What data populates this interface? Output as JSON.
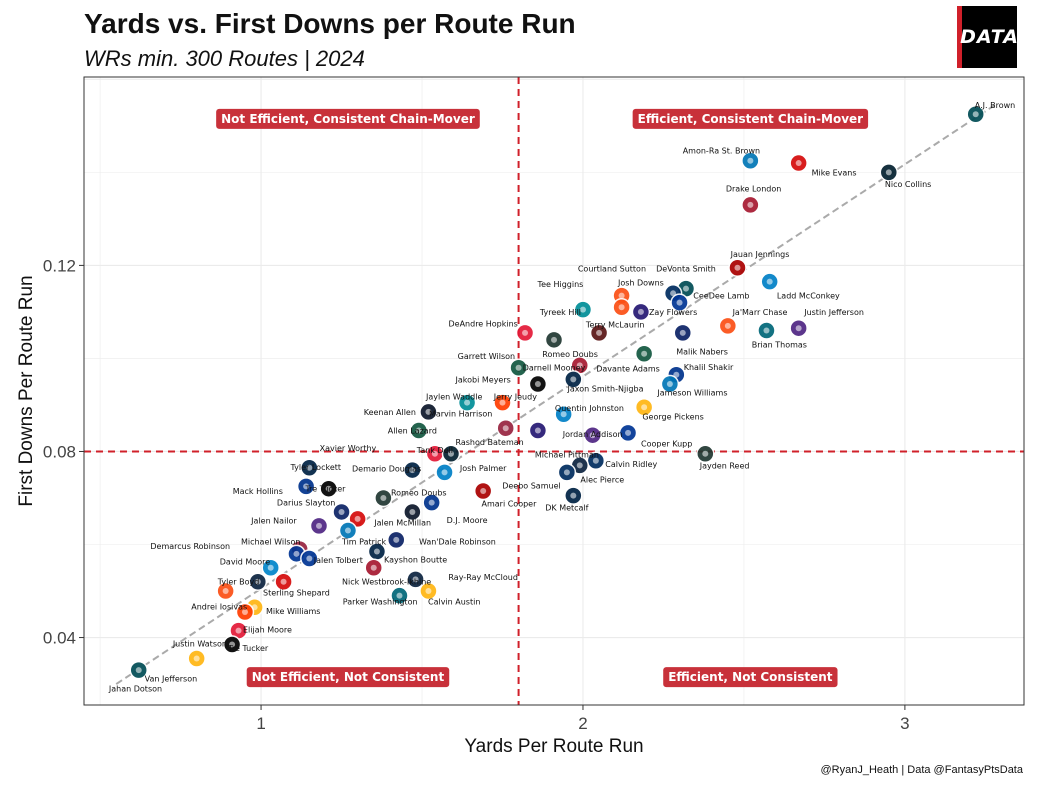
{
  "header": {
    "title": "Yards vs. First Downs per Route Run",
    "subtitle": "WRs min. 300 Routes | 2024",
    "logo_text": "DATA"
  },
  "footer": {
    "caption": "@RyanJ_Heath | Data @FantasyPtsData"
  },
  "colors": {
    "accent_red": "#d0202a",
    "quadrant_box": "#c8313a",
    "trend_line": "#aaaaaa",
    "grid": "#ebebeb"
  },
  "chart_data": {
    "type": "scatter",
    "xlabel": "Yards Per Route Run",
    "ylabel": "First Downs Per Route Run",
    "xlim": [
      0.45,
      3.37
    ],
    "ylim": [
      0.0255,
      0.1605
    ],
    "x_ticks": [
      1,
      2,
      3
    ],
    "y_ticks": [
      0.04,
      0.08,
      0.12
    ],
    "y_tick_labels": [
      "0.04",
      "0.08",
      "0.12"
    ],
    "grid": true,
    "reference_lines": {
      "x": 1.8,
      "y": 0.08
    },
    "trend_line": {
      "x": [
        0.55,
        3.28
      ],
      "y": [
        0.03,
        0.1545
      ]
    },
    "quadrant_labels": [
      {
        "text": "Not Efficient, Consistent Chain-Mover",
        "x": 1.27,
        "y": 0.1515
      },
      {
        "text": "Efficient, Consistent Chain-Mover",
        "x": 2.52,
        "y": 0.1515
      },
      {
        "text": "Not Efficient, Not Consistent",
        "x": 1.27,
        "y": 0.0315
      },
      {
        "text": "Efficient, Not Consistent",
        "x": 2.52,
        "y": 0.0315
      }
    ],
    "points": [
      {
        "name": "A.J. Brown",
        "team": "PHI",
        "color": "#004c54",
        "x": 3.22,
        "y": 0.1525,
        "lx": 3.28,
        "ly": 0.1545
      },
      {
        "name": "Amon-Ra St. Brown",
        "team": "DET",
        "color": "#0076b6",
        "x": 2.52,
        "y": 0.1425,
        "lx": 2.43,
        "ly": 0.1447
      },
      {
        "name": "Mike Evans",
        "team": "TB",
        "color": "#d50a0a",
        "x": 2.67,
        "y": 0.142,
        "lx": 2.78,
        "ly": 0.14
      },
      {
        "name": "Nico Collins",
        "team": "HOU",
        "color": "#03202f",
        "x": 2.95,
        "y": 0.14,
        "lx": 3.01,
        "ly": 0.1375
      },
      {
        "name": "Drake London",
        "team": "ATL",
        "color": "#a71930",
        "x": 2.52,
        "y": 0.133,
        "lx": 2.53,
        "ly": 0.1365
      },
      {
        "name": "Jauan Jennings",
        "team": "SF",
        "color": "#aa0000",
        "x": 2.48,
        "y": 0.1195,
        "lx": 2.55,
        "ly": 0.1225
      },
      {
        "name": "Courtland Sutton",
        "team": "DEN",
        "color": "#fb4f14",
        "x": 2.12,
        "y": 0.1135,
        "lx": 2.09,
        "ly": 0.1193
      },
      {
        "name": "DeVonta Smith",
        "team": "PHI",
        "color": "#004c54",
        "x": 2.32,
        "y": 0.115,
        "lx": 2.32,
        "ly": 0.1193
      },
      {
        "name": "Ladd McConkey",
        "team": "LAC",
        "color": "#0080c6",
        "x": 2.58,
        "y": 0.1165,
        "lx": 2.7,
        "ly": 0.1135
      },
      {
        "name": "Josh Downs",
        "team": "IND",
        "color": "#002c5f",
        "x": 2.28,
        "y": 0.114,
        "lx": 2.18,
        "ly": 0.1163
      },
      {
        "name": "CeeDee Lamb",
        "team": "DAL",
        "color": "#003594",
        "x": 2.3,
        "y": 0.112,
        "lx": 2.43,
        "ly": 0.1135
      },
      {
        "name": "Tee Higgins",
        "team": "CIN",
        "color": "#fb4f14",
        "x": 2.12,
        "y": 0.111,
        "lx": 1.93,
        "ly": 0.116
      },
      {
        "name": "Tyreek Hill",
        "team": "MIA",
        "color": "#008e97",
        "x": 2.0,
        "y": 0.1105,
        "lx": 1.93,
        "ly": 0.11
      },
      {
        "name": "Zay Flowers",
        "team": "BAL",
        "color": "#241773",
        "x": 2.18,
        "y": 0.11,
        "lx": 2.28,
        "ly": 0.11
      },
      {
        "name": "Ja'Marr Chase",
        "team": "CIN",
        "color": "#fb4f14",
        "x": 2.45,
        "y": 0.107,
        "lx": 2.55,
        "ly": 0.11
      },
      {
        "name": "Justin Jefferson",
        "team": "MIN",
        "color": "#4f2683",
        "x": 2.67,
        "y": 0.1065,
        "lx": 2.78,
        "ly": 0.11
      },
      {
        "name": "DeAndre Hopkins",
        "team": "KC",
        "color": "#e31837",
        "x": 1.82,
        "y": 0.1055,
        "lx": 1.69,
        "ly": 0.1075
      },
      {
        "name": "Terry McLaurin",
        "team": "WAS",
        "color": "#5a1414",
        "x": 2.05,
        "y": 0.1055,
        "lx": 2.1,
        "ly": 0.1073
      },
      {
        "name": "Romeo Doubs",
        "team": "GB",
        "color": "#203731",
        "x": 1.91,
        "y": 0.104,
        "lx": 1.96,
        "ly": 0.101
      },
      {
        "name": "Malik Nabers",
        "team": "NYG",
        "color": "#0b2265",
        "x": 2.31,
        "y": 0.1055,
        "lx": 2.37,
        "ly": 0.1015
      },
      {
        "name": "Brian Thomas",
        "team": "JAX",
        "color": "#006778",
        "x": 2.57,
        "y": 0.106,
        "lx": 2.61,
        "ly": 0.103
      },
      {
        "name": "Garrett Wilson",
        "team": "NYJ",
        "color": "#125740",
        "x": 1.8,
        "y": 0.098,
        "lx": 1.7,
        "ly": 0.1005
      },
      {
        "name": "Darnell Mooney",
        "team": "ATL",
        "color": "#a71930",
        "x": 1.99,
        "y": 0.0985,
        "lx": 1.91,
        "ly": 0.098
      },
      {
        "name": "Davante Adams",
        "team": "NYJ",
        "color": "#125740",
        "x": 2.19,
        "y": 0.101,
        "lx": 2.14,
        "ly": 0.0978
      },
      {
        "name": "Khalil Shakir",
        "team": "BUF",
        "color": "#00338d",
        "x": 2.29,
        "y": 0.0965,
        "lx": 2.39,
        "ly": 0.0982
      },
      {
        "name": "Jakobi Meyers",
        "team": "LV",
        "color": "#000000",
        "x": 1.86,
        "y": 0.0945,
        "lx": 1.69,
        "ly": 0.0955
      },
      {
        "name": "Jaxon Smith-Njigba",
        "team": "SEA",
        "color": "#002244",
        "x": 1.97,
        "y": 0.0955,
        "lx": 2.07,
        "ly": 0.0935
      },
      {
        "name": "Jameson Williams",
        "team": "DET",
        "color": "#0076b6",
        "x": 2.27,
        "y": 0.0945,
        "lx": 2.34,
        "ly": 0.0927
      },
      {
        "name": "Jaylen Waddle",
        "team": "MIA",
        "color": "#008e97",
        "x": 1.64,
        "y": 0.0905,
        "lx": 1.6,
        "ly": 0.0918
      },
      {
        "name": "Jerry Jeudy",
        "team": "CLE",
        "color": "#ff3c00",
        "x": 1.75,
        "y": 0.0905,
        "lx": 1.79,
        "ly": 0.0918
      },
      {
        "name": "Quentin Johnston",
        "team": "LAC",
        "color": "#0080c6",
        "x": 1.94,
        "y": 0.088,
        "lx": 2.02,
        "ly": 0.0893
      },
      {
        "name": "Keenan Allen",
        "team": "CHI",
        "color": "#0b162a",
        "x": 1.52,
        "y": 0.0885,
        "lx": 1.4,
        "ly": 0.0885
      },
      {
        "name": "Marvin Harrison",
        "team": "ARI",
        "color": "#97233f",
        "x": 1.76,
        "y": 0.085,
        "lx": 1.62,
        "ly": 0.0882
      },
      {
        "name": "George Pickens",
        "team": "PIT",
        "color": "#ffb612",
        "x": 2.19,
        "y": 0.0895,
        "lx": 2.28,
        "ly": 0.0875
      },
      {
        "name": "Allen Lazard",
        "team": "NYJ",
        "color": "#125740",
        "x": 1.49,
        "y": 0.0845,
        "lx": 1.47,
        "ly": 0.0845
      },
      {
        "name": "Rashod Bateman",
        "team": "BAL",
        "color": "#241773",
        "x": 1.86,
        "y": 0.0845,
        "lx": 1.71,
        "ly": 0.082
      },
      {
        "name": "Jordan Addison",
        "team": "MIN",
        "color": "#4f2683",
        "x": 2.03,
        "y": 0.0835,
        "lx": 2.03,
        "ly": 0.0838
      },
      {
        "name": "Cooper Kupp",
        "team": "LAR",
        "color": "#003594",
        "x": 2.14,
        "y": 0.084,
        "lx": 2.26,
        "ly": 0.0817
      },
      {
        "name": "Xavier Worthy",
        "team": "KC",
        "color": "#e31837",
        "x": 1.54,
        "y": 0.0795,
        "lx": 1.27,
        "ly": 0.0807
      },
      {
        "name": "Tank Dell",
        "team": "HOU",
        "color": "#03202f",
        "x": 1.59,
        "y": 0.0795,
        "lx": 1.54,
        "ly": 0.0803
      },
      {
        "name": "Michael Pittman",
        "team": "IND",
        "color": "#002c5f",
        "x": 2.04,
        "y": 0.078,
        "lx": 1.95,
        "ly": 0.0793
      },
      {
        "name": "Jayden Reed",
        "team": "GB",
        "color": "#203731",
        "x": 2.38,
        "y": 0.0795,
        "lx": 2.44,
        "ly": 0.077
      },
      {
        "name": "Calvin Ridley",
        "team": "TEN",
        "color": "#0c2340",
        "x": 1.99,
        "y": 0.077,
        "lx": 2.15,
        "ly": 0.0773
      },
      {
        "name": "Tyler Lockett",
        "team": "SEA",
        "color": "#002244",
        "x": 1.15,
        "y": 0.0765,
        "lx": 1.17,
        "ly": 0.0767
      },
      {
        "name": "Demario Douglas",
        "team": "NE",
        "color": "#002244",
        "x": 1.47,
        "y": 0.076,
        "lx": 1.39,
        "ly": 0.0763
      },
      {
        "name": "Josh Palmer",
        "team": "LAC",
        "color": "#0080c6",
        "x": 1.57,
        "y": 0.0755,
        "lx": 1.69,
        "ly": 0.0765
      },
      {
        "name": "Alec Pierce",
        "team": "IND",
        "color": "#002c5f",
        "x": 1.95,
        "y": 0.0755,
        "lx": 2.06,
        "ly": 0.074
      },
      {
        "name": "Deebo Samuel",
        "team": "SF",
        "color": "#aa0000",
        "x": 1.69,
        "y": 0.0715,
        "lx": 1.84,
        "ly": 0.0727
      },
      {
        "name": "DK Metcalf",
        "team": "SEA",
        "color": "#002244",
        "x": 1.97,
        "y": 0.0705,
        "lx": 1.95,
        "ly": 0.068
      },
      {
        "name": "Mack Hollins",
        "team": "BUF",
        "color": "#00338d",
        "x": 1.14,
        "y": 0.0725,
        "lx": 0.99,
        "ly": 0.0715
      },
      {
        "name": "Tre Tucker",
        "team": "LV",
        "color": "#000000",
        "x": 1.21,
        "y": 0.072,
        "lx": 1.2,
        "ly": 0.072
      },
      {
        "name": "Romeo Doubs",
        "team": "GB",
        "color": "#203731",
        "x": 1.38,
        "y": 0.07,
        "lx": 1.49,
        "ly": 0.0712
      },
      {
        "name": "Amari Cooper",
        "team": "BUF",
        "color": "#00338d",
        "x": 1.53,
        "y": 0.069,
        "lx": 1.77,
        "ly": 0.0688
      },
      {
        "name": "Darius Slayton",
        "team": "NYG",
        "color": "#0b2265",
        "x": 1.25,
        "y": 0.067,
        "lx": 1.14,
        "ly": 0.069
      },
      {
        "name": "Jalen McMillan",
        "team": "TB",
        "color": "#d50a0a",
        "x": 1.3,
        "y": 0.0655,
        "lx": 1.44,
        "ly": 0.0647
      },
      {
        "name": "D.J. Moore",
        "team": "CHI",
        "color": "#0b162a",
        "x": 1.47,
        "y": 0.067,
        "lx": 1.64,
        "ly": 0.0653
      },
      {
        "name": "Jalen Nailor",
        "team": "MIN",
        "color": "#4f2683",
        "x": 1.18,
        "y": 0.064,
        "lx": 1.04,
        "ly": 0.0652
      },
      {
        "name": "Tim Patrick",
        "team": "DET",
        "color": "#0076b6",
        "x": 1.27,
        "y": 0.063,
        "lx": 1.32,
        "ly": 0.0607
      },
      {
        "name": "Wan'Dale Robinson",
        "team": "NYG",
        "color": "#0b2265",
        "x": 1.42,
        "y": 0.061,
        "lx": 1.61,
        "ly": 0.0607
      },
      {
        "name": "Michael Wilson",
        "team": "ARI",
        "color": "#97233f",
        "x": 1.12,
        "y": 0.059,
        "lx": 1.03,
        "ly": 0.0607
      },
      {
        "name": "Demarcus Robinson",
        "team": "LAR",
        "color": "#003594",
        "x": 1.11,
        "y": 0.058,
        "lx": 0.78,
        "ly": 0.0597
      },
      {
        "name": "Jalen Tolbert",
        "team": "DAL",
        "color": "#003594",
        "x": 1.15,
        "y": 0.057,
        "lx": 1.24,
        "ly": 0.0567
      },
      {
        "name": "Kayshon Boutte",
        "team": "NE",
        "color": "#002244",
        "x": 1.36,
        "y": 0.0585,
        "lx": 1.48,
        "ly": 0.0568
      },
      {
        "name": "David Moore",
        "team": "CAR",
        "color": "#0085ca",
        "x": 1.03,
        "y": 0.055,
        "lx": 0.95,
        "ly": 0.0563
      },
      {
        "name": "Ray-Ray McCloud",
        "team": "ATL",
        "color": "#a71930",
        "x": 1.35,
        "y": 0.055,
        "lx": 1.69,
        "ly": 0.053
      },
      {
        "name": "Nick Westbrook-Ikhine",
        "team": "TEN",
        "color": "#0c2340",
        "x": 1.48,
        "y": 0.0525,
        "lx": 1.39,
        "ly": 0.052
      },
      {
        "name": "Tyler Boyd",
        "team": "TEN",
        "color": "#0c2340",
        "x": 0.99,
        "y": 0.052,
        "lx": 0.93,
        "ly": 0.052
      },
      {
        "name": "Sterling Shepard",
        "team": "TB",
        "color": "#d50a0a",
        "x": 1.07,
        "y": 0.052,
        "lx": 1.11,
        "ly": 0.0497
      },
      {
        "name": "Calvin Austin",
        "team": "PIT",
        "color": "#ffb612",
        "x": 1.52,
        "y": 0.05,
        "lx": 1.6,
        "ly": 0.0477
      },
      {
        "name": "Parker Washington",
        "team": "JAX",
        "color": "#006778",
        "x": 1.43,
        "y": 0.049,
        "lx": 1.37,
        "ly": 0.0477
      },
      {
        "name": "Andrei Iosivas",
        "team": "CIN",
        "color": "#fb4f14",
        "x": 0.89,
        "y": 0.05,
        "lx": 0.87,
        "ly": 0.0467
      },
      {
        "name": "Mike Williams",
        "team": "PIT",
        "color": "#ffb612",
        "x": 0.98,
        "y": 0.0465,
        "lx": 1.1,
        "ly": 0.0457
      },
      {
        "name": "Elijah Moore",
        "team": "CLE",
        "color": "#ff3c00",
        "x": 0.95,
        "y": 0.0455,
        "lx": 1.02,
        "ly": 0.0417
      },
      {
        "name": "Justin Watson",
        "team": "KC",
        "color": "#e31837",
        "x": 0.93,
        "y": 0.0415,
        "lx": 0.81,
        "ly": 0.0387
      },
      {
        "name": "Tre Tucker",
        "team": "LV",
        "color": "#000000",
        "x": 0.91,
        "y": 0.0385,
        "lx": 0.96,
        "ly": 0.0377
      },
      {
        "name": "Van Jefferson",
        "team": "PIT",
        "color": "#ffb612",
        "x": 0.8,
        "y": 0.0355,
        "lx": 0.72,
        "ly": 0.0312
      },
      {
        "name": "Jahan Dotson",
        "team": "PHI",
        "color": "#004c54",
        "x": 0.62,
        "y": 0.033,
        "lx": 0.61,
        "ly": 0.029
      }
    ]
  }
}
